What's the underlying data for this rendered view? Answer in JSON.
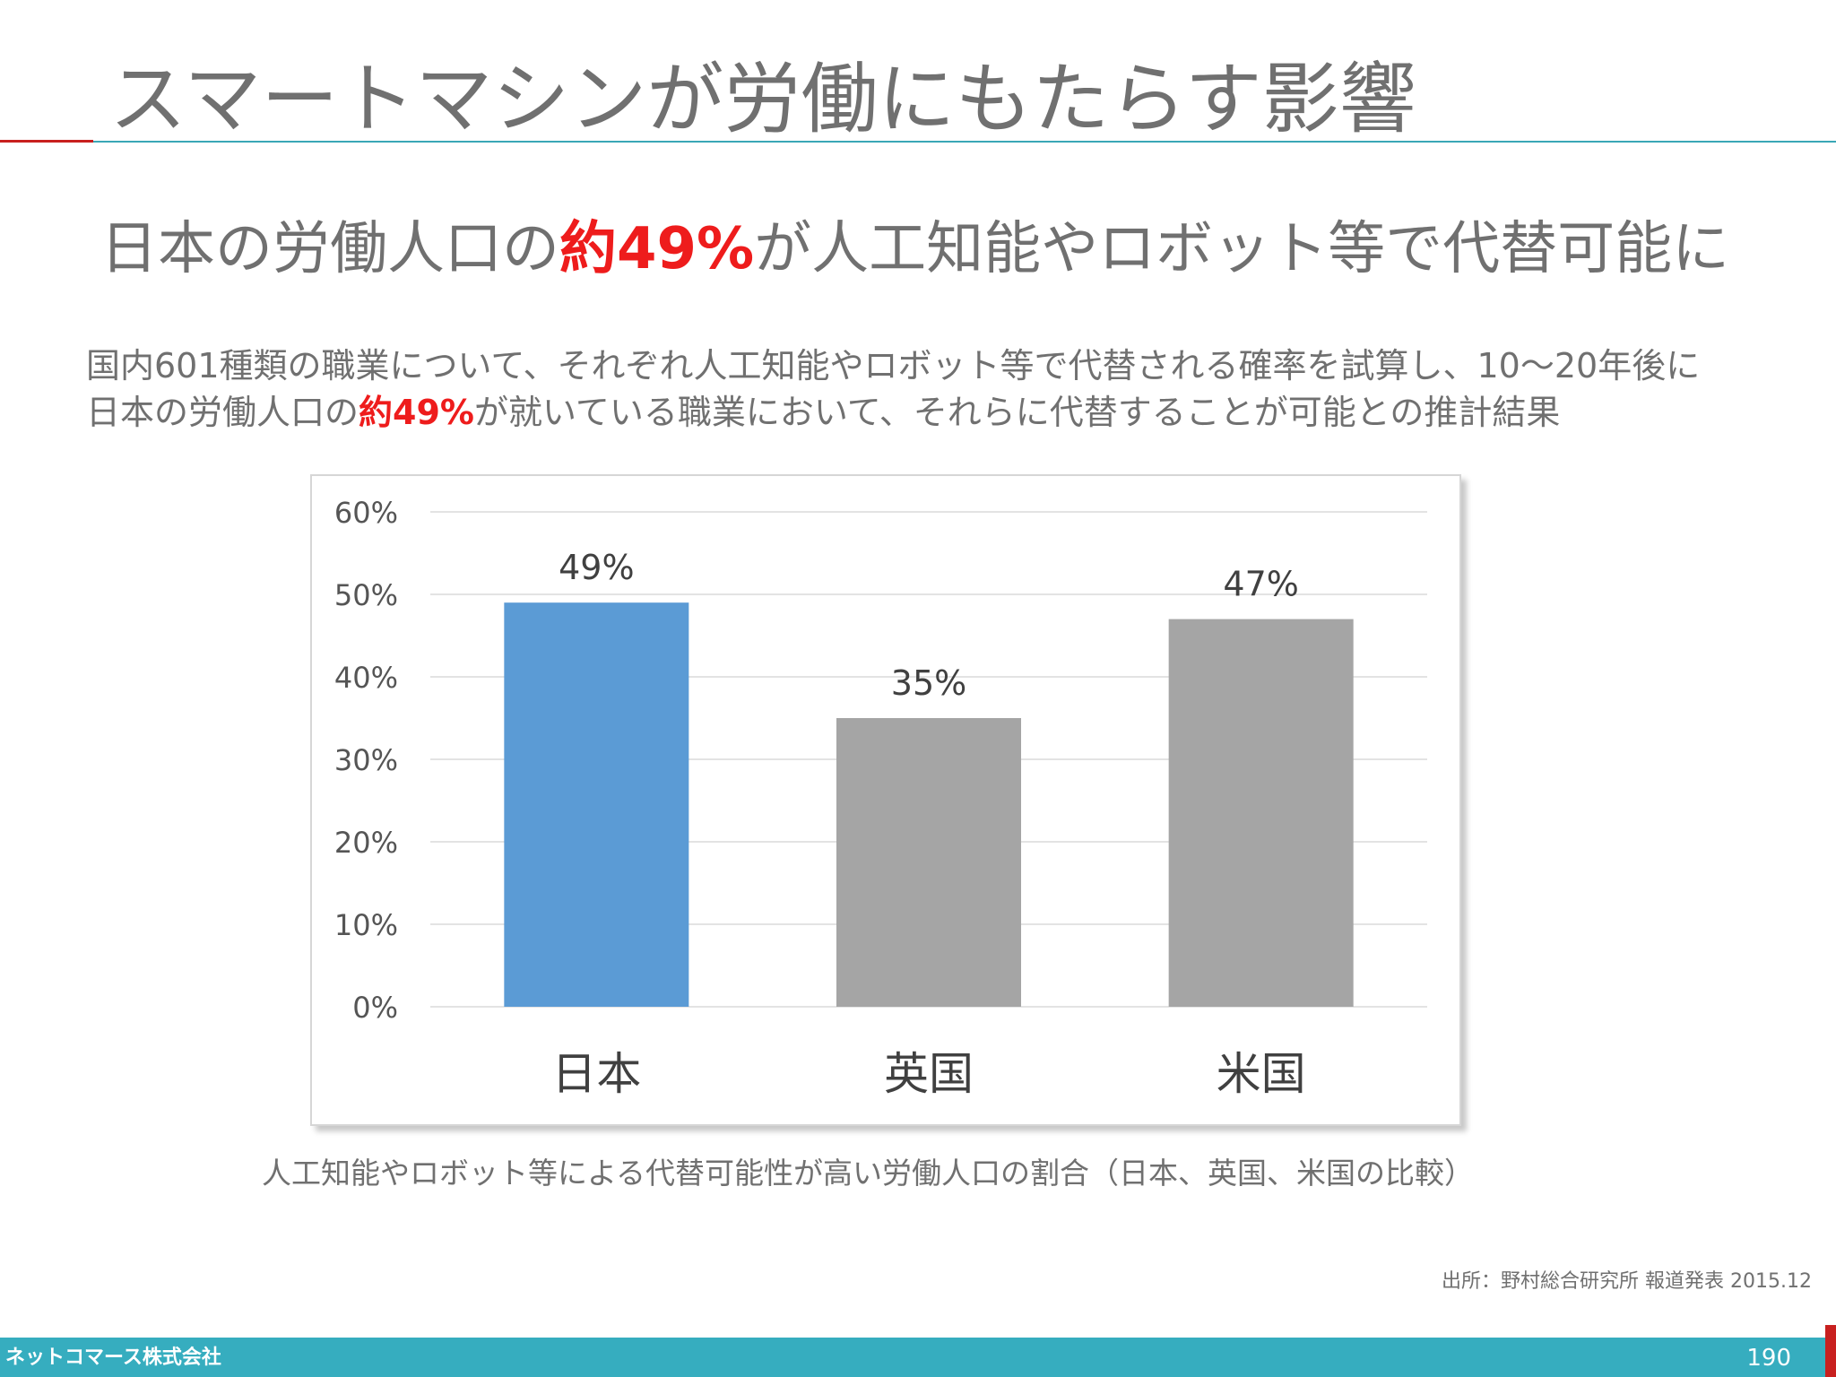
{
  "slide": {
    "title": "スマートマシンが労働にもたらす影響",
    "headline_pre": "日本の労働人口の",
    "headline_em": "約49%",
    "headline_post": "が人工知能やロボット等で代替可能に",
    "body_line1": "国内601種類の職業について、それぞれ人工知能やロボット等で代替される確率を試算し、10〜20年後に",
    "body_line2_pre": "日本の労働人口の",
    "body_line2_em": "約49%",
    "body_line2_post": "が就いている職業において、それらに代替することが可能との推計結果",
    "caption": "人工知能やロボット等による代替可能性が高い労働人口の割合（日本、英国、米国の比較）",
    "source": "出所：野村総合研究所 報道発表 2015.12"
  },
  "footer": {
    "company": "ネットコマース株式会社",
    "page": "190"
  },
  "colors": {
    "highlight_bar": "#5b9bd5",
    "other_bar": "#a5a5a5",
    "accent_red": "#ee1c1c",
    "footer_teal": "#36adbf"
  },
  "chart_data": {
    "type": "bar",
    "categories": [
      "日本",
      "英国",
      "米国"
    ],
    "values": [
      49,
      35,
      47
    ],
    "data_labels": [
      "49%",
      "35%",
      "47%"
    ],
    "y_ticks": [
      "0%",
      "10%",
      "20%",
      "30%",
      "40%",
      "50%",
      "60%"
    ],
    "ylim": [
      0,
      60
    ],
    "grid": true,
    "highlight_index": 0
  }
}
